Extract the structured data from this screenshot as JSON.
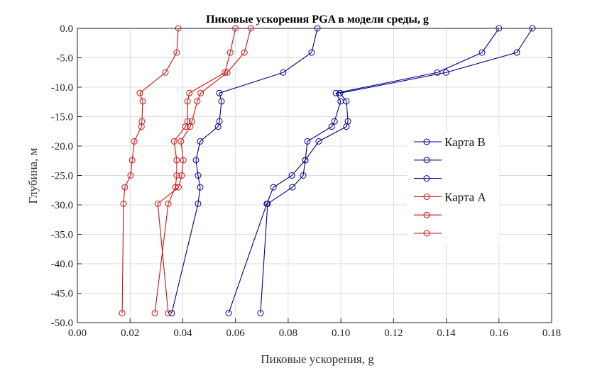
{
  "chart_data": {
    "type": "line",
    "title": "Пиковые ускорения PGA  в модели среды, g",
    "xlabel": "Пиковые ускорения, g",
    "ylabel": "Глубина, м",
    "xlim": [
      0,
      0.18
    ],
    "ylim": [
      -50,
      0
    ],
    "xticks": [
      "0.00",
      "0.02",
      "0.04",
      "0.06",
      "0.08",
      "0.10",
      "0.12",
      "0.14",
      "0.16",
      "0.18"
    ],
    "yticks": [
      "0.0",
      "-5.0",
      "-10.0",
      "-15.0",
      "-20.0",
      "-25.0",
      "-30.0",
      "-35.0",
      "-40.0",
      "-45.0",
      "-50.0"
    ],
    "grid": true,
    "legend_position": "right",
    "depths": [
      0,
      -4.1,
      -7.5,
      -11,
      -12.4,
      -15.8,
      -16.7,
      -19.2,
      -22.4,
      -25,
      -27,
      -29.8,
      -48.4
    ],
    "series": [
      {
        "name": "Карта B",
        "color": "#00008b",
        "values": [
          0.0911,
          0.0889,
          0.0781,
          0.0539,
          0.0547,
          0.0539,
          0.0534,
          0.0466,
          0.045,
          0.0458,
          0.0466,
          0.0458,
          0.0358
        ]
      },
      {
        "name": "",
        "color": "#00008b",
        "values": [
          0.16,
          0.1536,
          0.1366,
          0.0981,
          0.0999,
          0.0976,
          0.0965,
          0.0873,
          0.0865,
          0.0814,
          0.0744,
          0.0719,
          0.0574
        ]
      },
      {
        "name": "",
        "color": "#00008b",
        "values": [
          0.1727,
          0.1668,
          0.1399,
          0.0997,
          0.1021,
          0.1027,
          0.1021,
          0.0916,
          0.0865,
          0.0857,
          0.0816,
          0.0722,
          0.0695
        ]
      },
      {
        "name": "Карта A",
        "color": "#cc1111",
        "values": [
          0.0383,
          0.0377,
          0.0334,
          0.0237,
          0.0248,
          0.0245,
          0.0243,
          0.0216,
          0.0208,
          0.0202,
          0.018,
          0.0175,
          0.017
        ]
      },
      {
        "name": "",
        "color": "#cc1111",
        "values": [
          0.06,
          0.058,
          0.056,
          0.0425,
          0.0418,
          0.0418,
          0.041,
          0.0367,
          0.0377,
          0.0377,
          0.0372,
          0.0345,
          0.0294
        ]
      },
      {
        "name": "",
        "color": "#cc1111",
        "values": [
          0.0658,
          0.0634,
          0.0569,
          0.0468,
          0.0455,
          0.0435,
          0.0428,
          0.0393,
          0.0402,
          0.0396,
          0.0384,
          0.0305,
          0.0345
        ]
      }
    ]
  }
}
